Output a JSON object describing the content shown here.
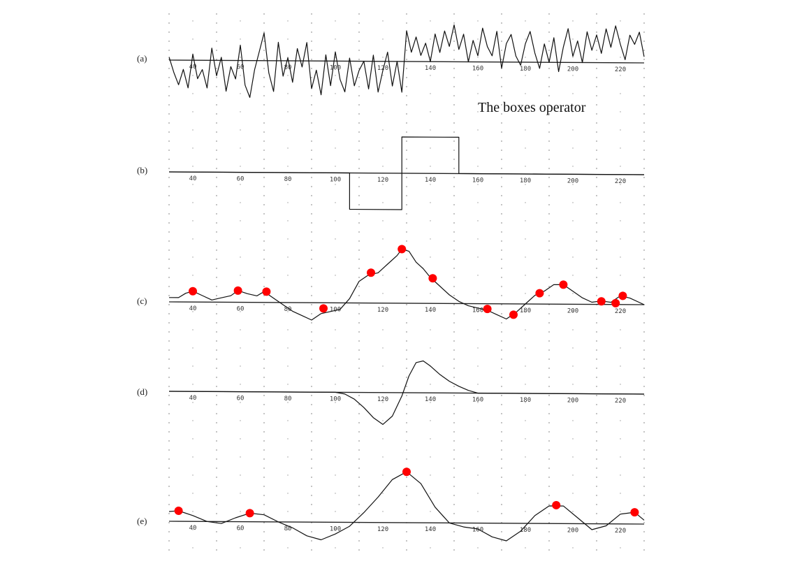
{
  "figure": {
    "annotation": "The boxes operator",
    "x_ticks": [
      40,
      60,
      80,
      100,
      120,
      140,
      160,
      180,
      200,
      220
    ],
    "grid": "dotted"
  },
  "chart_data": [
    {
      "panel": "(a)",
      "type": "line",
      "grid": true,
      "xlim": [
        30,
        230
      ],
      "ylim": [
        -1.3,
        1.3
      ],
      "x": [
        30,
        32,
        34,
        36,
        38,
        40,
        42,
        44,
        46,
        48,
        50,
        52,
        54,
        56,
        58,
        60,
        62,
        64,
        66,
        68,
        70,
        72,
        74,
        76,
        78,
        80,
        82,
        84,
        86,
        88,
        90,
        92,
        94,
        96,
        98,
        100,
        102,
        104,
        106,
        108,
        110,
        112,
        114,
        116,
        118,
        120,
        122,
        124,
        126,
        128,
        130,
        132,
        134,
        136,
        138,
        140,
        142,
        144,
        146,
        148,
        150,
        152,
        154,
        156,
        158,
        160,
        162,
        164,
        166,
        168,
        170,
        172,
        174,
        176,
        178,
        180,
        182,
        184,
        186,
        188,
        190,
        192,
        194,
        196,
        198,
        200,
        202,
        204,
        206,
        208,
        210,
        212,
        214,
        216,
        218,
        220,
        222,
        224,
        226,
        228,
        230
      ],
      "y": [
        0.1,
        -0.4,
        -0.8,
        -0.3,
        -0.9,
        0.2,
        -0.6,
        -0.3,
        -0.9,
        0.4,
        -0.5,
        0.1,
        -1.0,
        -0.2,
        -0.6,
        0.5,
        -0.8,
        -1.2,
        -0.3,
        0.3,
        0.9,
        -0.4,
        -1.0,
        0.6,
        -0.5,
        0.1,
        -0.7,
        0.4,
        -0.2,
        0.6,
        -0.9,
        -0.3,
        -1.1,
        0.2,
        -0.8,
        0.3,
        -0.6,
        -1.0,
        0.1,
        -0.8,
        -0.3,
        0.0,
        -0.9,
        0.2,
        -1.0,
        -0.3,
        0.3,
        -0.8,
        0.0,
        -1.0,
        1.0,
        0.3,
        0.8,
        0.2,
        0.6,
        0.0,
        0.9,
        0.3,
        1.0,
        0.5,
        1.2,
        0.4,
        0.9,
        0.0,
        0.7,
        0.2,
        1.1,
        0.5,
        0.2,
        1.0,
        -0.2,
        0.6,
        0.9,
        0.2,
        -0.1,
        0.6,
        1.0,
        0.3,
        -0.2,
        0.6,
        0.0,
        0.8,
        -0.3,
        0.5,
        1.1,
        0.2,
        0.7,
        0.0,
        1.0,
        0.4,
        0.9,
        0.3,
        1.1,
        0.5,
        1.2,
        0.6,
        0.1,
        0.9,
        0.6,
        1.0,
        0.2
      ]
    },
    {
      "panel": "(b)",
      "type": "line",
      "grid": true,
      "xlim": [
        30,
        230
      ],
      "ylim": [
        -1.3,
        1.3
      ],
      "x": [
        30,
        106,
        106,
        128,
        128,
        152,
        152,
        230
      ],
      "y": [
        0,
        0,
        -1.0,
        -1.0,
        1.0,
        1.0,
        0,
        0
      ]
    },
    {
      "panel": "(c)",
      "type": "line",
      "grid": true,
      "xlim": [
        30,
        230
      ],
      "ylim": [
        -1.3,
        1.3
      ],
      "x": [
        30,
        34,
        37,
        40,
        44,
        48,
        52,
        56,
        59,
        63,
        67,
        70,
        74,
        78,
        82,
        86,
        90,
        94,
        98,
        102,
        106,
        110,
        114,
        118,
        122,
        126,
        128,
        131,
        134,
        137,
        140,
        144,
        148,
        152,
        156,
        160,
        164,
        168,
        172,
        176,
        180,
        184,
        188,
        192,
        196,
        200,
        204,
        208,
        212,
        216,
        220,
        224,
        230
      ],
      "y": [
        0.1,
        0.1,
        0.2,
        0.25,
        0.15,
        0.05,
        0.1,
        0.15,
        0.27,
        0.2,
        0.15,
        0.25,
        0.1,
        -0.05,
        -0.2,
        -0.3,
        -0.4,
        -0.25,
        -0.2,
        -0.15,
        0.1,
        0.5,
        0.65,
        0.7,
        0.9,
        1.1,
        1.25,
        1.2,
        0.95,
        0.8,
        0.6,
        0.4,
        0.2,
        0.05,
        -0.05,
        -0.1,
        -0.15,
        -0.25,
        -0.35,
        -0.2,
        0.0,
        0.2,
        0.3,
        0.45,
        0.45,
        0.3,
        0.15,
        0.05,
        0.08,
        0.05,
        0.2,
        0.15,
        0.0
      ],
      "peaks": {
        "x": [
          40,
          59,
          71,
          95,
          115,
          128,
          141,
          164,
          175,
          186,
          196,
          212,
          218,
          221
        ],
        "y": [
          0.25,
          0.27,
          0.25,
          -0.13,
          0.7,
          1.25,
          0.58,
          -0.12,
          -0.25,
          0.25,
          0.45,
          0.07,
          0.03,
          0.2
        ]
      }
    },
    {
      "panel": "(d)",
      "type": "line",
      "grid": true,
      "xlim": [
        30,
        230
      ],
      "ylim": [
        -1.3,
        1.3
      ],
      "x": [
        30,
        100,
        104,
        108,
        112,
        116,
        120,
        124,
        128,
        131,
        134,
        137,
        140,
        144,
        148,
        152,
        156,
        160,
        230
      ],
      "y": [
        0,
        0,
        -0.05,
        -0.2,
        -0.45,
        -0.75,
        -0.95,
        -0.7,
        -0.1,
        0.5,
        0.9,
        0.95,
        0.8,
        0.55,
        0.35,
        0.2,
        0.08,
        0.0,
        0.0
      ]
    },
    {
      "panel": "(e)",
      "type": "line",
      "grid": true,
      "xlim": [
        30,
        230
      ],
      "ylim": [
        -1.3,
        1.3
      ],
      "x": [
        30,
        34,
        40,
        46,
        52,
        58,
        64,
        70,
        76,
        82,
        88,
        94,
        100,
        106,
        112,
        118,
        124,
        130,
        136,
        142,
        148,
        154,
        160,
        166,
        172,
        178,
        184,
        190,
        196,
        202,
        208,
        214,
        220,
        226,
        230
      ],
      "y": [
        0.25,
        0.27,
        0.15,
        0.0,
        -0.05,
        0.1,
        0.22,
        0.18,
        0.0,
        -0.15,
        -0.35,
        -0.45,
        -0.3,
        -0.1,
        0.25,
        0.65,
        1.1,
        1.3,
        1.0,
        0.4,
        0.0,
        -0.1,
        -0.15,
        -0.35,
        -0.45,
        -0.2,
        0.2,
        0.45,
        0.45,
        0.15,
        -0.15,
        -0.05,
        0.25,
        0.3,
        0.1
      ],
      "peaks": {
        "x": [
          34,
          64,
          130,
          193,
          226
        ],
        "y": [
          0.27,
          0.22,
          1.3,
          0.47,
          0.3
        ]
      }
    }
  ]
}
